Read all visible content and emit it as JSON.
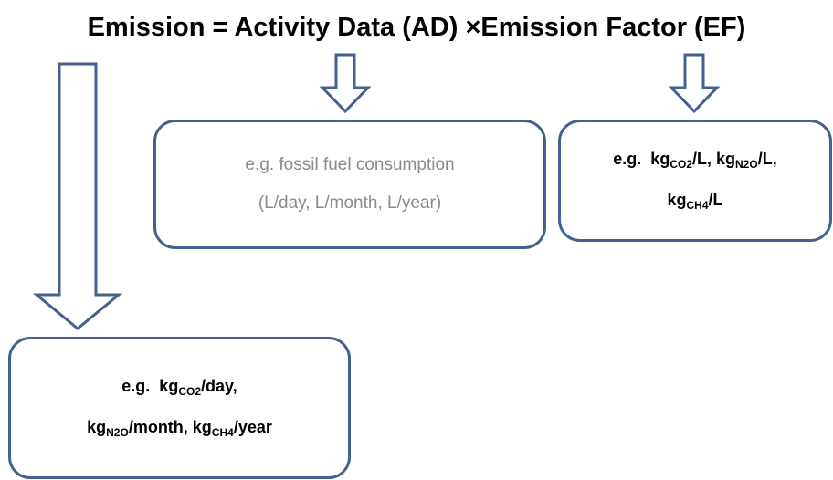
{
  "title": "Emission = Activity Data (AD) ×Emission Factor (EF)",
  "boxes": [
    {
      "lines": [
        [
          {
            "text": "e.g. fossil fuel consumption"
          }
        ],
        [
          {
            "text": "(L/day, L/month, L/year)"
          }
        ]
      ]
    },
    {
      "lines": [
        [
          {
            "text": "e.g.  kg"
          },
          {
            "sub": "CO2"
          },
          {
            "text": "/L, kg"
          },
          {
            "sub": "N2O"
          },
          {
            "text": "/L,"
          }
        ],
        [
          {
            "text": "kg"
          },
          {
            "sub": "CH4"
          },
          {
            "text": "/L"
          }
        ]
      ]
    },
    {
      "lines": [
        [
          {
            "text": "e.g.  kg"
          },
          {
            "sub": "CO2"
          },
          {
            "text": "/day,"
          }
        ],
        [
          {
            "text": "kg"
          },
          {
            "sub": "N2O"
          },
          {
            "text": "/month, kg"
          },
          {
            "sub": "CH4"
          },
          {
            "text": "/year"
          }
        ]
      ]
    }
  ]
}
